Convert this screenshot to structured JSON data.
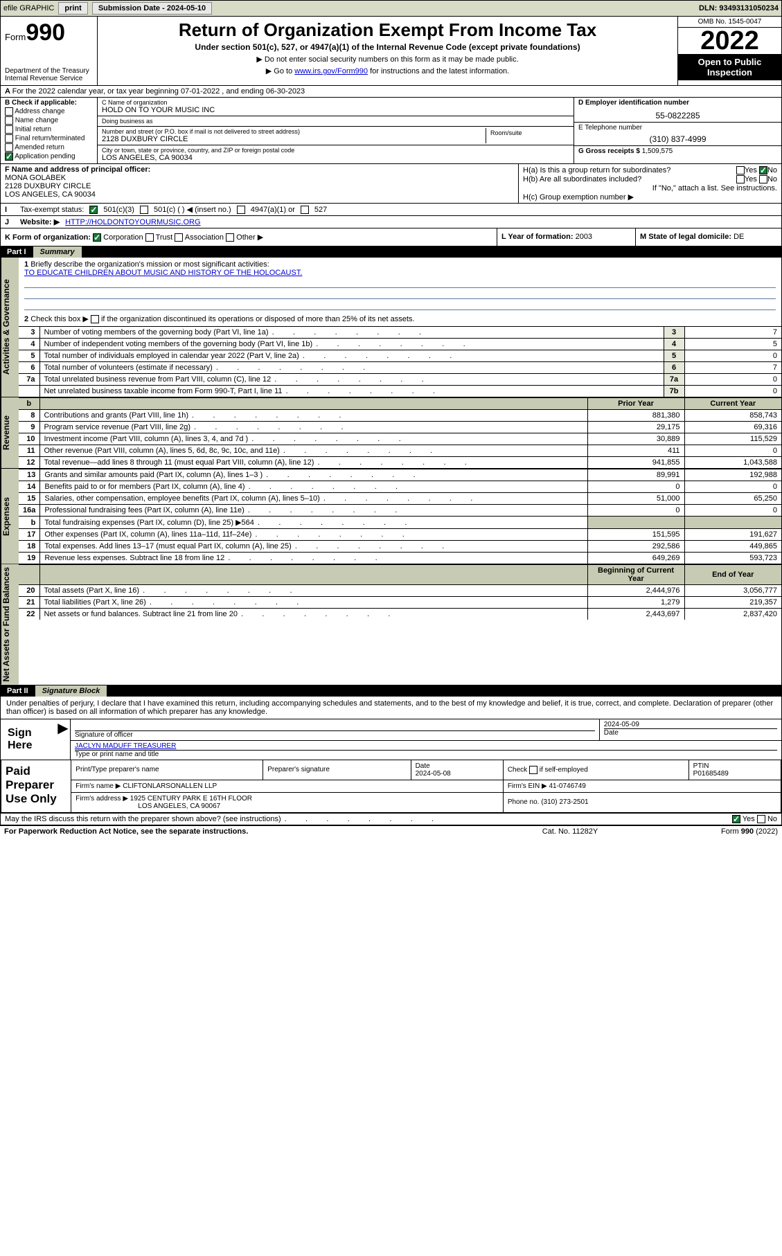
{
  "topbar": {
    "efile": "efile GRAPHIC",
    "print": "print",
    "submission": "Submission Date - 2024-05-10",
    "dln": "DLN: 93493131050234"
  },
  "header": {
    "form_label": "Form",
    "form_no": "990",
    "dept": "Department of the Treasury",
    "irs": "Internal Revenue Service",
    "title": "Return of Organization Exempt From Income Tax",
    "sub1": "Under section 501(c), 527, or 4947(a)(1) of the Internal Revenue Code (except private foundations)",
    "sub2a": "Do not enter social security numbers on this form as it may be made public.",
    "sub2b_pre": "Go to ",
    "sub2b_link": "www.irs.gov/Form990",
    "sub2b_post": " for instructions and the latest information.",
    "omb": "OMB No. 1545-0047",
    "year": "2022",
    "open": "Open to Public Inspection"
  },
  "line_a": "For the 2022 calendar year, or tax year beginning 07-01-2022    , and ending 06-30-2023",
  "b": {
    "hdr": "B Check if applicable:",
    "items": [
      "Address change",
      "Name change",
      "Initial return",
      "Final return/terminated",
      "Amended return",
      "Application pending"
    ]
  },
  "c": {
    "name_lbl": "C Name of organization",
    "name": "HOLD ON TO YOUR MUSIC INC",
    "dba_lbl": "Doing business as",
    "dba": "",
    "addr_lbl": "Number and street (or P.O. box if mail is not delivered to street address)",
    "room_lbl": "Room/suite",
    "addr": "2128 DUXBURY CIRCLE",
    "city_lbl": "City or town, state or province, country, and ZIP or foreign postal code",
    "city": "LOS ANGELES, CA   90034"
  },
  "d": {
    "lbl": "D Employer identification number",
    "val": "55-0822285"
  },
  "e": {
    "lbl": "E Telephone number",
    "val": "(310) 837-4999"
  },
  "g": {
    "lbl": "G Gross receipts $",
    "val": "1,509,575"
  },
  "f": {
    "lbl": "F  Name and address of principal officer:",
    "name": "MONA GOLABEK",
    "addr1": "2128 DUXBURY CIRCLE",
    "addr2": "LOS ANGELES, CA   90034"
  },
  "h": {
    "a": "H(a)  Is this a group return for subordinates?",
    "a_yes": "Yes",
    "a_no": "No",
    "b": "H(b)  Are all subordinates included?",
    "b_note": "If \"No,\" attach a list. See instructions.",
    "c": "H(c)  Group exemption number ▶"
  },
  "i": {
    "lbl": "Tax-exempt status:",
    "opts": [
      "501(c)(3)",
      "501(c) (  ) ◀ (insert no.)",
      "4947(a)(1) or",
      "527"
    ]
  },
  "j": {
    "lbl": "Website: ▶",
    "val": "HTTP://HOLDONTOYOURMUSIC.ORG"
  },
  "k": {
    "lbl": "K Form of organization:",
    "opts": [
      "Corporation",
      "Trust",
      "Association",
      "Other ▶"
    ]
  },
  "l": {
    "lbl": "L Year of formation:",
    "val": "2003"
  },
  "m": {
    "lbl": "M State of legal domicile:",
    "val": "DE"
  },
  "part1": {
    "num": "Part I",
    "title": "Summary"
  },
  "mission": {
    "q1": "Briefly describe the organization's mission or most significant activities:",
    "text": "TO EDUCATE CHILDREN ABOUT MUSIC AND HISTORY OF THE HOLOCAUST.",
    "q2": "Check this box ▶",
    "q2b": "if the organization discontinued its operations or disposed of more than 25% of its net assets."
  },
  "gov_lines": [
    {
      "n": "3",
      "d": "Number of voting members of the governing body (Part VI, line 1a)",
      "box": "3",
      "v": "7"
    },
    {
      "n": "4",
      "d": "Number of independent voting members of the governing body (Part VI, line 1b)",
      "box": "4",
      "v": "5"
    },
    {
      "n": "5",
      "d": "Total number of individuals employed in calendar year 2022 (Part V, line 2a)",
      "box": "5",
      "v": "0"
    },
    {
      "n": "6",
      "d": "Total number of volunteers (estimate if necessary)",
      "box": "6",
      "v": "7"
    },
    {
      "n": "7a",
      "d": "Total unrelated business revenue from Part VIII, column (C), line 12",
      "box": "7a",
      "v": "0"
    },
    {
      "n": "",
      "d": "Net unrelated business taxable income from Form 990-T, Part I, line 11",
      "box": "7b",
      "v": "0"
    }
  ],
  "col_hdr": {
    "b": "b",
    "py": "Prior Year",
    "cy": "Current Year"
  },
  "rev_lines": [
    {
      "n": "8",
      "d": "Contributions and grants (Part VIII, line 1h)",
      "py": "881,380",
      "cy": "858,743"
    },
    {
      "n": "9",
      "d": "Program service revenue (Part VIII, line 2g)",
      "py": "29,175",
      "cy": "69,316"
    },
    {
      "n": "10",
      "d": "Investment income (Part VIII, column (A), lines 3, 4, and 7d )",
      "py": "30,889",
      "cy": "115,529"
    },
    {
      "n": "11",
      "d": "Other revenue (Part VIII, column (A), lines 5, 6d, 8c, 9c, 10c, and 11e)",
      "py": "411",
      "cy": "0"
    },
    {
      "n": "12",
      "d": "Total revenue—add lines 8 through 11 (must equal Part VIII, column (A), line 12)",
      "py": "941,855",
      "cy": "1,043,588"
    }
  ],
  "exp_lines": [
    {
      "n": "13",
      "d": "Grants and similar amounts paid (Part IX, column (A), lines 1–3 )",
      "py": "89,991",
      "cy": "192,988"
    },
    {
      "n": "14",
      "d": "Benefits paid to or for members (Part IX, column (A), line 4)",
      "py": "0",
      "cy": "0"
    },
    {
      "n": "15",
      "d": "Salaries, other compensation, employee benefits (Part IX, column (A), lines 5–10)",
      "py": "51,000",
      "cy": "65,250"
    },
    {
      "n": "16a",
      "d": "Professional fundraising fees (Part IX, column (A), line 11e)",
      "py": "0",
      "cy": "0"
    },
    {
      "n": "b",
      "d": "Total fundraising expenses (Part IX, column (D), line 25) ▶564",
      "py": "",
      "cy": "",
      "shade": true
    },
    {
      "n": "17",
      "d": "Other expenses (Part IX, column (A), lines 11a–11d, 11f–24e)",
      "py": "151,595",
      "cy": "191,627"
    },
    {
      "n": "18",
      "d": "Total expenses. Add lines 13–17 (must equal Part IX, column (A), line 25)",
      "py": "292,586",
      "cy": "449,865"
    },
    {
      "n": "19",
      "d": "Revenue less expenses. Subtract line 18 from line 12",
      "py": "649,269",
      "cy": "593,723"
    }
  ],
  "na_hdr": {
    "py": "Beginning of Current Year",
    "cy": "End of Year"
  },
  "na_lines": [
    {
      "n": "20",
      "d": "Total assets (Part X, line 16)",
      "py": "2,444,976",
      "cy": "3,056,777"
    },
    {
      "n": "21",
      "d": "Total liabilities (Part X, line 26)",
      "py": "1,279",
      "cy": "219,357"
    },
    {
      "n": "22",
      "d": "Net assets or fund balances. Subtract line 21 from line 20",
      "py": "2,443,697",
      "cy": "2,837,420"
    }
  ],
  "part2": {
    "num": "Part II",
    "title": "Signature Block"
  },
  "sig": {
    "decl": "Under penalties of perjury, I declare that I have examined this return, including accompanying schedules and statements, and to the best of my knowledge and belief, it is true, correct, and complete. Declaration of preparer (other than officer) is based on all information of which preparer has any knowledge.",
    "here": "Sign Here",
    "off_lbl": "Signature of officer",
    "date_lbl": "Date",
    "date": "2024-05-09",
    "name": "JACLYN MADUFF  TREASURER",
    "name_lbl": "Type or print name and title"
  },
  "prep": {
    "lab": "Paid Preparer Use Only",
    "h1": "Print/Type preparer's name",
    "h2": "Preparer's signature",
    "h3": "Date",
    "h4": "Check",
    "h4b": "if self-employed",
    "h5": "PTIN",
    "date": "2024-05-08",
    "ptin": "P01685489",
    "firm_lbl": "Firm's name    ▶",
    "firm": "CLIFTONLARSONALLEN LLP",
    "ein_lbl": "Firm's EIN ▶",
    "ein": "41-0746749",
    "addr_lbl": "Firm's address ▶",
    "addr1": "1925 CENTURY PARK E 16TH FLOOR",
    "addr2": "LOS ANGELES, CA  90067",
    "phone_lbl": "Phone no.",
    "phone": "(310) 273-2501"
  },
  "discuss": {
    "q": "May the IRS discuss this return with the preparer shown above? (see instructions)",
    "yes": "Yes",
    "no": "No"
  },
  "footer": {
    "l": "For Paperwork Reduction Act Notice, see the separate instructions.",
    "m": "Cat. No. 11282Y",
    "r": "Form 990 (2022)"
  },
  "vtabs": {
    "gov": "Activities & Governance",
    "rev": "Revenue",
    "exp": "Expenses",
    "na": "Net Assets or Fund Balances"
  }
}
